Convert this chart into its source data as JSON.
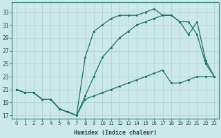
{
  "xlabel": "Humidex (Indice chaleur)",
  "bg_color": "#cce8ec",
  "grid_color": "#b0d4d8",
  "line_color": "#1a7060",
  "xlim": [
    -0.5,
    23.5
  ],
  "ylim": [
    16.5,
    34.5
  ],
  "yticks": [
    17,
    19,
    21,
    23,
    25,
    27,
    29,
    31,
    33
  ],
  "xticks": [
    0,
    1,
    2,
    3,
    4,
    5,
    6,
    7,
    8,
    9,
    10,
    11,
    12,
    13,
    14,
    15,
    16,
    17,
    18,
    19,
    20,
    21,
    22,
    23
  ],
  "series_top_x": [
    0,
    1,
    2,
    3,
    4,
    5,
    6,
    7,
    8,
    9,
    10,
    11,
    12,
    13,
    14,
    15,
    16,
    17,
    18,
    19,
    20,
    21,
    22,
    23
  ],
  "series_top_y": [
    21,
    20.5,
    20.5,
    19.5,
    19.5,
    18.0,
    17.5,
    17.0,
    26.0,
    30.0,
    31.0,
    32.0,
    32.5,
    32.5,
    32.5,
    33.0,
    33.5,
    32.5,
    32.5,
    31.5,
    29.5,
    31.5,
    25.5,
    23.0
  ],
  "series_mid_x": [
    0,
    1,
    2,
    3,
    4,
    5,
    6,
    7,
    8,
    9,
    10,
    11,
    12,
    13,
    14,
    15,
    16,
    17,
    18,
    19,
    20,
    21,
    22,
    23
  ],
  "series_mid_y": [
    21,
    20.5,
    20.5,
    19.5,
    19.5,
    18.0,
    17.5,
    17.0,
    20.0,
    23.0,
    26.0,
    27.5,
    29.0,
    30.0,
    31.0,
    31.5,
    32.0,
    32.5,
    32.5,
    31.5,
    31.5,
    29.5,
    25.0,
    23.0
  ],
  "series_bot_x": [
    0,
    1,
    2,
    3,
    4,
    5,
    6,
    7,
    8,
    9,
    10,
    11,
    12,
    13,
    14,
    15,
    16,
    17,
    18,
    19,
    20,
    21,
    22,
    23
  ],
  "series_bot_y": [
    21,
    20.5,
    20.5,
    19.5,
    19.5,
    18.0,
    17.5,
    17.0,
    19.5,
    20.0,
    20.5,
    21.0,
    21.5,
    22.0,
    22.5,
    23.0,
    23.5,
    24.0,
    22.0,
    22.0,
    22.5,
    23.0,
    23.0,
    23.0
  ]
}
